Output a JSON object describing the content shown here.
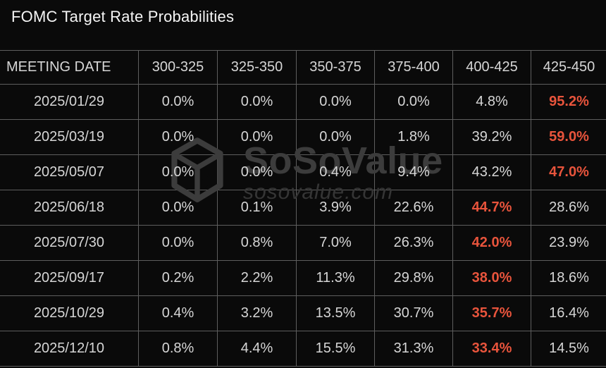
{
  "chart_data": {
    "type": "table",
    "title": "FOMC Target Rate Probabilities",
    "date_header": "MEETING DATE",
    "rate_headers": [
      "300-325",
      "325-350",
      "350-375",
      "375-400",
      "400-425",
      "425-450"
    ],
    "rows": [
      {
        "date": "2025/01/29",
        "values": [
          "0.0%",
          "0.0%",
          "0.0%",
          "0.0%",
          "4.8%",
          "95.2%"
        ],
        "highlight_col": 5
      },
      {
        "date": "2025/03/19",
        "values": [
          "0.0%",
          "0.0%",
          "0.0%",
          "1.8%",
          "39.2%",
          "59.0%"
        ],
        "highlight_col": 5
      },
      {
        "date": "2025/05/07",
        "values": [
          "0.0%",
          "0.0%",
          "0.4%",
          "9.4%",
          "43.2%",
          "47.0%"
        ],
        "highlight_col": 5
      },
      {
        "date": "2025/06/18",
        "values": [
          "0.0%",
          "0.1%",
          "3.9%",
          "22.6%",
          "44.7%",
          "28.6%"
        ],
        "highlight_col": 4
      },
      {
        "date": "2025/07/30",
        "values": [
          "0.0%",
          "0.8%",
          "7.0%",
          "26.3%",
          "42.0%",
          "23.9%"
        ],
        "highlight_col": 4
      },
      {
        "date": "2025/09/17",
        "values": [
          "0.2%",
          "2.2%",
          "11.3%",
          "29.8%",
          "38.0%",
          "18.6%"
        ],
        "highlight_col": 4
      },
      {
        "date": "2025/10/29",
        "values": [
          "0.4%",
          "3.2%",
          "13.5%",
          "30.7%",
          "35.7%",
          "16.4%"
        ],
        "highlight_col": 4
      },
      {
        "date": "2025/12/10",
        "values": [
          "0.8%",
          "4.4%",
          "15.5%",
          "31.3%",
          "33.4%",
          "14.5%"
        ],
        "highlight_col": 4
      }
    ],
    "layout": {
      "grid": true,
      "highlight_means": "highest probability in row"
    }
  },
  "watermark": {
    "brand": "SoSoValue",
    "domain": "sosovalue.com",
    "logo": "sosovalue-cube-icon"
  },
  "colors": {
    "background": "#0a0a0a",
    "grid_border": "#5e5e5e",
    "text": "#d6d6d6",
    "title_text": "#f5f5f5",
    "highlight": "#e8543c",
    "watermark": "#3c3c3c"
  }
}
